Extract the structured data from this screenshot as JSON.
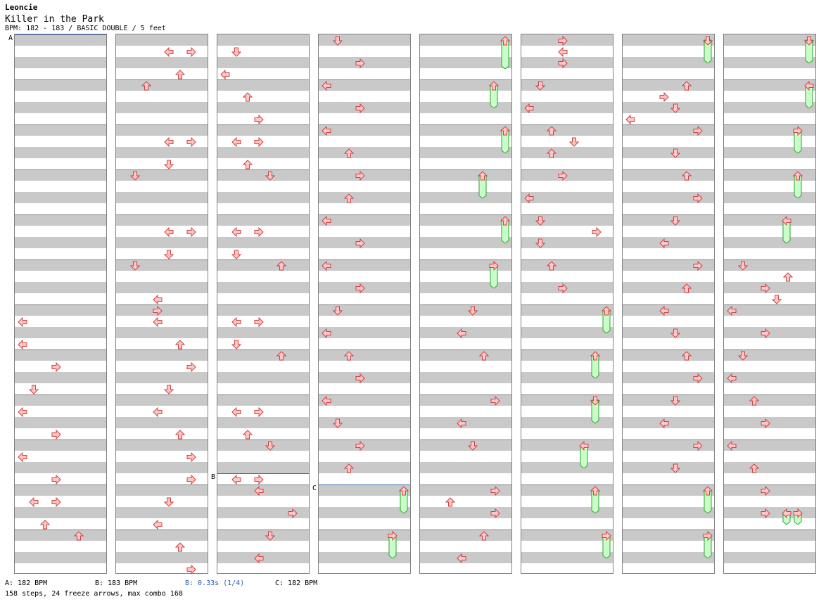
{
  "header": {
    "artist": "Leoncie",
    "title": "Killer in the Park",
    "meta": "BPM: 182 - 183 / BASIC DOUBLE / 5 feet"
  },
  "markers": [
    {
      "label": "A",
      "column": 0,
      "row": 0,
      "span": 1
    },
    {
      "label": "B",
      "column": 2,
      "row": 39,
      "span": 1
    },
    {
      "label": "C",
      "column": 3,
      "row": 40,
      "span": 1
    }
  ],
  "notes": [
    {
      "c": 0,
      "r": 25,
      "d": "L"
    },
    {
      "c": 0,
      "r": 27,
      "d": "L"
    },
    {
      "c": 0,
      "r": 29,
      "d": "R"
    },
    {
      "c": 0,
      "r": 31,
      "d": "D"
    },
    {
      "c": 0,
      "r": 33,
      "d": "L"
    },
    {
      "c": 0,
      "r": 35,
      "d": "R"
    },
    {
      "c": 0,
      "r": 37,
      "d": "L"
    },
    {
      "c": 0,
      "r": 39,
      "d": "R"
    },
    {
      "c": 0,
      "r": 41,
      "d": "R"
    },
    {
      "c": 0,
      "r": 41,
      "d": "L",
      "x": 1
    },
    {
      "c": 0,
      "r": 43,
      "d": "U"
    },
    {
      "c": 0,
      "r": 44,
      "d": "U"
    },
    {
      "c": 1,
      "r": 1,
      "d": "R"
    },
    {
      "c": 1,
      "r": 1,
      "d": "L",
      "x": 1
    },
    {
      "c": 1,
      "r": 3,
      "d": "U"
    },
    {
      "c": 1,
      "r": 4,
      "d": "U"
    },
    {
      "c": 1,
      "r": 9,
      "d": "R"
    },
    {
      "c": 1,
      "r": 9,
      "d": "L",
      "x": 1
    },
    {
      "c": 1,
      "r": 11,
      "d": "D"
    },
    {
      "c": 1,
      "r": 12,
      "d": "D"
    },
    {
      "c": 1,
      "r": 17,
      "d": "R"
    },
    {
      "c": 1,
      "r": 17,
      "d": "L",
      "x": 1
    },
    {
      "c": 1,
      "r": 19,
      "d": "D"
    },
    {
      "c": 1,
      "r": 20,
      "d": "D"
    },
    {
      "c": 1,
      "r": 23,
      "d": "L"
    },
    {
      "c": 1,
      "r": 24,
      "d": "R"
    },
    {
      "c": 1,
      "r": 25,
      "d": "L"
    },
    {
      "c": 1,
      "r": 27,
      "d": "U"
    },
    {
      "c": 1,
      "r": 29,
      "d": "R"
    },
    {
      "c": 1,
      "r": 31,
      "d": "D"
    },
    {
      "c": 1,
      "r": 33,
      "d": "L"
    },
    {
      "c": 1,
      "r": 35,
      "d": "U"
    },
    {
      "c": 1,
      "r": 37,
      "d": "R"
    },
    {
      "c": 1,
      "r": 39,
      "d": "R"
    },
    {
      "c": 1,
      "r": 41,
      "d": "D"
    },
    {
      "c": 1,
      "r": 43,
      "d": "L"
    },
    {
      "c": 1,
      "r": 45,
      "d": "U"
    },
    {
      "c": 1,
      "r": 47,
      "d": "R"
    },
    {
      "c": 2,
      "r": 1,
      "d": "D"
    },
    {
      "c": 2,
      "r": 3,
      "d": "L"
    },
    {
      "c": 2,
      "r": 5,
      "d": "U"
    },
    {
      "c": 2,
      "r": 7,
      "d": "R"
    },
    {
      "c": 2,
      "r": 9,
      "d": "R"
    },
    {
      "c": 2,
      "r": 9,
      "d": "L",
      "x": 1
    },
    {
      "c": 2,
      "r": 11,
      "d": "U"
    },
    {
      "c": 2,
      "r": 12,
      "d": "D"
    },
    {
      "c": 2,
      "r": 17,
      "d": "R"
    },
    {
      "c": 2,
      "r": 17,
      "d": "L",
      "x": 1
    },
    {
      "c": 2,
      "r": 19,
      "d": "D"
    },
    {
      "c": 2,
      "r": 20,
      "d": "U"
    },
    {
      "c": 2,
      "r": 25,
      "d": "R"
    },
    {
      "c": 2,
      "r": 25,
      "d": "L",
      "x": 1
    },
    {
      "c": 2,
      "r": 27,
      "d": "D"
    },
    {
      "c": 2,
      "r": 28,
      "d": "U"
    },
    {
      "c": 2,
      "r": 33,
      "d": "R"
    },
    {
      "c": 2,
      "r": 33,
      "d": "L",
      "x": 1
    },
    {
      "c": 2,
      "r": 35,
      "d": "U"
    },
    {
      "c": 2,
      "r": 36,
      "d": "D"
    },
    {
      "c": 2,
      "r": 39,
      "d": "R"
    },
    {
      "c": 2,
      "r": 39,
      "d": "L",
      "x": 1
    },
    {
      "c": 2,
      "r": 40,
      "d": "L"
    },
    {
      "c": 2,
      "r": 42,
      "d": "R"
    },
    {
      "c": 2,
      "r": 44,
      "d": "D"
    },
    {
      "c": 2,
      "r": 46,
      "d": "L"
    },
    {
      "c": 3,
      "r": 0,
      "d": "D"
    },
    {
      "c": 3,
      "r": 2,
      "d": "R"
    },
    {
      "c": 3,
      "r": 4,
      "d": "L"
    },
    {
      "c": 3,
      "r": 6,
      "d": "R"
    },
    {
      "c": 3,
      "r": 8,
      "d": "L"
    },
    {
      "c": 3,
      "r": 10,
      "d": "U"
    },
    {
      "c": 3,
      "r": 12,
      "d": "R"
    },
    {
      "c": 3,
      "r": 14,
      "d": "U"
    },
    {
      "c": 3,
      "r": 16,
      "d": "L"
    },
    {
      "c": 3,
      "r": 18,
      "d": "R"
    },
    {
      "c": 3,
      "r": 20,
      "d": "L"
    },
    {
      "c": 3,
      "r": 22,
      "d": "R"
    },
    {
      "c": 3,
      "r": 24,
      "d": "D"
    },
    {
      "c": 3,
      "r": 26,
      "d": "L"
    },
    {
      "c": 3,
      "r": 28,
      "d": "U"
    },
    {
      "c": 3,
      "r": 30,
      "d": "R"
    },
    {
      "c": 3,
      "r": 32,
      "d": "L"
    },
    {
      "c": 3,
      "r": 34,
      "d": "D"
    },
    {
      "c": 3,
      "r": 36,
      "d": "R"
    },
    {
      "c": 3,
      "r": 38,
      "d": "U"
    },
    {
      "c": 4,
      "r": 24,
      "d": "D"
    },
    {
      "c": 4,
      "r": 26,
      "d": "L"
    },
    {
      "c": 4,
      "r": 28,
      "d": "U"
    },
    {
      "c": 4,
      "r": 32,
      "d": "R"
    },
    {
      "c": 4,
      "r": 34,
      "d": "L"
    },
    {
      "c": 4,
      "r": 36,
      "d": "D"
    },
    {
      "c": 4,
      "r": 40,
      "d": "R"
    },
    {
      "c": 4,
      "r": 41,
      "d": "U"
    },
    {
      "c": 4,
      "r": 42,
      "d": "R"
    },
    {
      "c": 4,
      "r": 44,
      "d": "U"
    },
    {
      "c": 4,
      "r": 46,
      "d": "L"
    },
    {
      "c": 5,
      "r": 0,
      "d": "R"
    },
    {
      "c": 5,
      "r": 1,
      "d": "L"
    },
    {
      "c": 5,
      "r": 2,
      "d": "R"
    },
    {
      "c": 5,
      "r": 4,
      "d": "D"
    },
    {
      "c": 5,
      "r": 6,
      "d": "L"
    },
    {
      "c": 5,
      "r": 8,
      "d": "U"
    },
    {
      "c": 5,
      "r": 9,
      "d": "D"
    },
    {
      "c": 5,
      "r": 10,
      "d": "U"
    },
    {
      "c": 5,
      "r": 12,
      "d": "R"
    },
    {
      "c": 5,
      "r": 14,
      "d": "L"
    },
    {
      "c": 5,
      "r": 16,
      "d": "D"
    },
    {
      "c": 5,
      "r": 17,
      "d": "R"
    },
    {
      "c": 5,
      "r": 18,
      "d": "D"
    },
    {
      "c": 5,
      "r": 20,
      "d": "U"
    },
    {
      "c": 5,
      "r": 22,
      "d": "R"
    },
    {
      "c": 6,
      "r": 4,
      "d": "U"
    },
    {
      "c": 6,
      "r": 5,
      "d": "R"
    },
    {
      "c": 6,
      "r": 6,
      "d": "D"
    },
    {
      "c": 6,
      "r": 7,
      "d": "L"
    },
    {
      "c": 6,
      "r": 8,
      "d": "R"
    },
    {
      "c": 6,
      "r": 10,
      "d": "D"
    },
    {
      "c": 6,
      "r": 12,
      "d": "U"
    },
    {
      "c": 6,
      "r": 14,
      "d": "R"
    },
    {
      "c": 6,
      "r": 16,
      "d": "D"
    },
    {
      "c": 6,
      "r": 18,
      "d": "L"
    },
    {
      "c": 6,
      "r": 20,
      "d": "R"
    },
    {
      "c": 6,
      "r": 22,
      "d": "U"
    },
    {
      "c": 6,
      "r": 24,
      "d": "L"
    },
    {
      "c": 6,
      "r": 26,
      "d": "D"
    },
    {
      "c": 6,
      "r": 28,
      "d": "U"
    },
    {
      "c": 6,
      "r": 30,
      "d": "R"
    },
    {
      "c": 6,
      "r": 32,
      "d": "D"
    },
    {
      "c": 6,
      "r": 34,
      "d": "L"
    },
    {
      "c": 6,
      "r": 36,
      "d": "R"
    },
    {
      "c": 6,
      "r": 38,
      "d": "D"
    },
    {
      "c": 7,
      "r": 20,
      "d": "D"
    },
    {
      "c": 7,
      "r": 21,
      "d": "U"
    },
    {
      "c": 7,
      "r": 22,
      "d": "R"
    },
    {
      "c": 7,
      "r": 23,
      "d": "D"
    },
    {
      "c": 7,
      "r": 24,
      "d": "L"
    },
    {
      "c": 7,
      "r": 26,
      "d": "R"
    },
    {
      "c": 7,
      "r": 28,
      "d": "D"
    },
    {
      "c": 7,
      "r": 30,
      "d": "L"
    },
    {
      "c": 7,
      "r": 32,
      "d": "U"
    },
    {
      "c": 7,
      "r": 34,
      "d": "R"
    },
    {
      "c": 7,
      "r": 36,
      "d": "L"
    },
    {
      "c": 7,
      "r": 38,
      "d": "U"
    },
    {
      "c": 7,
      "r": 40,
      "d": "R"
    },
    {
      "c": 7,
      "r": 42,
      "d": "R"
    }
  ],
  "freezes": [
    {
      "c": 4,
      "r": 0,
      "len": 3,
      "d": "U",
      "x": 2
    },
    {
      "c": 4,
      "r": 4,
      "len": 2.5,
      "d": "U",
      "x": 1
    },
    {
      "c": 4,
      "r": 8,
      "len": 2.5,
      "d": "U",
      "x": 2
    },
    {
      "c": 4,
      "r": 12,
      "len": 2.5,
      "d": "U",
      "x": 0
    },
    {
      "c": 4,
      "r": 16,
      "len": 2.5,
      "d": "U",
      "x": 2
    },
    {
      "c": 4,
      "r": 20,
      "len": 2.5,
      "d": "R",
      "x": 1
    },
    {
      "c": 3,
      "r": 40,
      "len": 2.5,
      "d": "U",
      "x": 2
    },
    {
      "c": 3,
      "r": 44,
      "len": 2.5,
      "d": "R",
      "x": 1
    },
    {
      "c": 5,
      "r": 24,
      "len": 2.5,
      "d": "U",
      "x": 2
    },
    {
      "c": 5,
      "r": 28,
      "len": 2.5,
      "d": "U",
      "x": 1
    },
    {
      "c": 5,
      "r": 32,
      "len": 2.5,
      "d": "D",
      "x": 1
    },
    {
      "c": 5,
      "r": 36,
      "len": 2.5,
      "d": "L",
      "x": 0
    },
    {
      "c": 5,
      "r": 40,
      "len": 2.5,
      "d": "U",
      "x": 1
    },
    {
      "c": 5,
      "r": 44,
      "len": 2.5,
      "d": "R",
      "x": 2
    },
    {
      "c": 6,
      "r": 0,
      "len": 2.5,
      "d": "D",
      "x": 2
    },
    {
      "c": 6,
      "r": 40,
      "len": 2.5,
      "d": "U",
      "x": 2
    },
    {
      "c": 6,
      "r": 44,
      "len": 2.5,
      "d": "R",
      "x": 3
    },
    {
      "c": 7,
      "r": 0,
      "len": 2.5,
      "d": "D",
      "x": 2
    },
    {
      "c": 7,
      "r": 4,
      "len": 2.5,
      "d": "L",
      "x": 2
    },
    {
      "c": 7,
      "r": 8,
      "len": 2.5,
      "d": "R",
      "x": 1
    },
    {
      "c": 7,
      "r": 12,
      "len": 2.5,
      "d": "U",
      "x": 1
    },
    {
      "c": 7,
      "r": 16,
      "len": 2.5,
      "d": "L",
      "x": 0
    },
    {
      "c": 7,
      "r": 42,
      "len": 1.5,
      "d": "L",
      "x": 0
    },
    {
      "c": 7,
      "r": 42,
      "len": 1.5,
      "d": "R",
      "x": 1
    }
  ],
  "legend": {
    "a": "A: 182 BPM",
    "b": "B: 183 BPM",
    "stop": "B: 0.33s (1/4)",
    "c": "C: 182 BPM"
  },
  "summary": "158 steps, 24 freeze arrows, max combo 168",
  "colors": {
    "arrow_fill": "#ffc8c8",
    "arrow_stroke": "#d04040",
    "freeze_fill": "#c8ffc8",
    "freeze_stroke": "#30a030",
    "band_gray": "#c9c9c9",
    "marker_line": "#3b6db0"
  }
}
